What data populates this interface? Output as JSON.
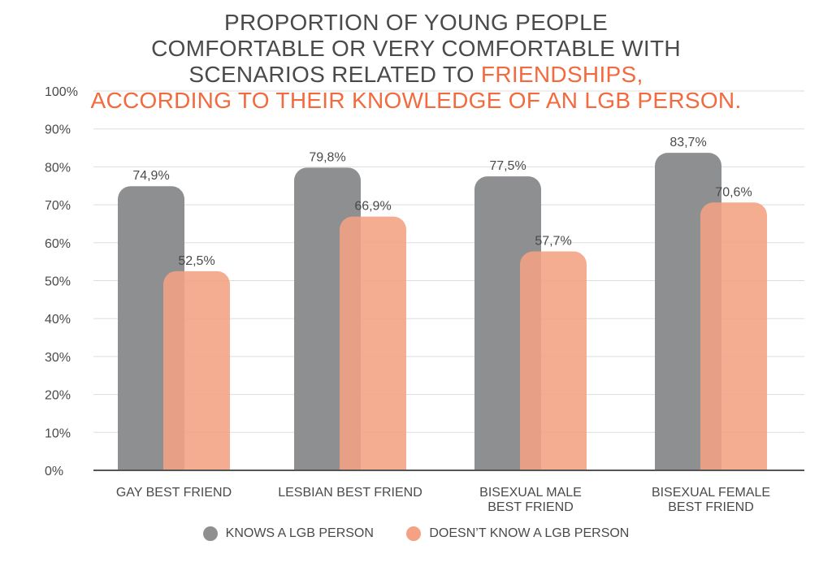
{
  "title": {
    "line1": "PROPORTION OF YOUNG PEOPLE",
    "line2": "COMFORTABLE OR VERY COMFORTABLE WITH",
    "line3a": "SCENARIOS RELATED TO ",
    "line3b": "FRIENDSHIPS,",
    "line4": "ACCORDING TO THEIR KNOWLEDGE OF AN LGB PERSON."
  },
  "colors": {
    "knows": "#8e8f91",
    "doesnt_know": "#f4a283",
    "accent": "#f26a3d",
    "text": "#4a4a4a",
    "grid": "#dddddd"
  },
  "legend": [
    {
      "label": "KNOWS A LGB PERSON"
    },
    {
      "label": "DOESN’T KNOW A LGB PERSON"
    }
  ],
  "chart_data": {
    "type": "bar",
    "categories": [
      [
        "GAY BEST FRIEND"
      ],
      [
        "LESBIAN BEST FRIEND"
      ],
      [
        "BISEXUAL MALE",
        "BEST FRIEND"
      ],
      [
        "BISEXUAL FEMALE",
        "BEST FRIEND"
      ]
    ],
    "series": [
      {
        "name": "KNOWS A LGB PERSON",
        "values": [
          74.9,
          79.8,
          77.5,
          83.7
        ],
        "labels": [
          "74,9%",
          "79,8%",
          "77,5%",
          "83,7%"
        ]
      },
      {
        "name": "DOESN’T KNOW A LGB PERSON",
        "values": [
          52.5,
          66.9,
          57.7,
          70.6
        ],
        "labels": [
          "52,5%",
          "66,9%",
          "57,7%",
          "70,6%"
        ]
      }
    ],
    "ylim": [
      0,
      100
    ],
    "yticks": [
      "0%",
      "10%",
      "20%",
      "30%",
      "40%",
      "50%",
      "60%",
      "70%",
      "80%",
      "90%",
      "100%"
    ],
    "grid": true,
    "legend_position": "bottom"
  }
}
